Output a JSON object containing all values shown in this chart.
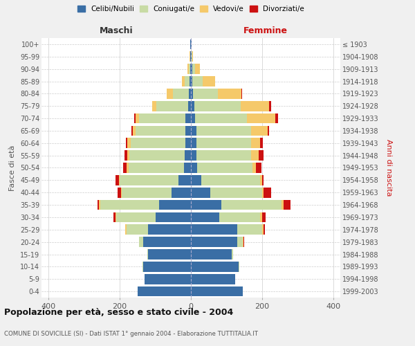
{
  "age_groups": [
    "0-4",
    "5-9",
    "10-14",
    "15-19",
    "20-24",
    "25-29",
    "30-34",
    "35-39",
    "40-44",
    "45-49",
    "50-54",
    "55-59",
    "60-64",
    "65-69",
    "70-74",
    "75-79",
    "80-84",
    "85-89",
    "90-94",
    "95-99",
    "100+"
  ],
  "birth_years": [
    "1999-2003",
    "1994-1998",
    "1989-1993",
    "1984-1988",
    "1979-1983",
    "1974-1978",
    "1969-1973",
    "1964-1968",
    "1959-1963",
    "1954-1958",
    "1949-1953",
    "1944-1948",
    "1939-1943",
    "1934-1938",
    "1929-1933",
    "1924-1928",
    "1919-1923",
    "1914-1918",
    "1909-1913",
    "1904-1908",
    "≤ 1903"
  ],
  "colors": {
    "celibi": "#3a6ea5",
    "coniugati": "#c8dba4",
    "vedovi": "#f5c96a",
    "divorziati": "#cc1111"
  },
  "males": {
    "celibi": [
      150,
      130,
      135,
      120,
      135,
      120,
      100,
      90,
      55,
      35,
      20,
      18,
      15,
      15,
      15,
      8,
      5,
      3,
      2,
      1,
      1
    ],
    "coniugati": [
      0,
      0,
      1,
      3,
      10,
      60,
      110,
      165,
      140,
      165,
      155,
      155,
      155,
      140,
      130,
      90,
      45,
      15,
      4,
      1,
      0
    ],
    "vedovi": [
      0,
      0,
      0,
      0,
      1,
      4,
      2,
      4,
      2,
      3,
      5,
      5,
      8,
      8,
      10,
      10,
      18,
      8,
      4,
      1,
      0
    ],
    "divorziati": [
      0,
      0,
      0,
      0,
      0,
      0,
      5,
      4,
      10,
      8,
      10,
      8,
      5,
      5,
      5,
      0,
      0,
      0,
      0,
      0,
      0
    ]
  },
  "females": {
    "celibi": [
      145,
      125,
      135,
      115,
      130,
      130,
      80,
      85,
      55,
      30,
      18,
      15,
      15,
      15,
      12,
      10,
      6,
      4,
      3,
      1,
      1
    ],
    "coniugati": [
      0,
      0,
      2,
      4,
      15,
      70,
      115,
      170,
      145,
      165,
      155,
      155,
      155,
      155,
      145,
      130,
      70,
      30,
      8,
      2,
      0
    ],
    "vedovi": [
      0,
      0,
      0,
      0,
      2,
      5,
      5,
      5,
      5,
      5,
      10,
      20,
      25,
      45,
      80,
      80,
      65,
      35,
      15,
      3,
      1
    ],
    "divorziati": [
      0,
      0,
      0,
      0,
      2,
      3,
      10,
      20,
      20,
      5,
      15,
      15,
      8,
      5,
      8,
      5,
      2,
      0,
      0,
      0,
      0
    ]
  },
  "title": "Popolazione per età, sesso e stato civile - 2004",
  "subtitle": "COMUNE DI SOVICILLE (SI) - Dati ISTAT 1° gennaio 2004 - Elaborazione TUTTITALIA.IT",
  "xlabel_left": "Maschi",
  "xlabel_right": "Femmine",
  "ylabel_left": "Fasce di età",
  "ylabel_right": "Anni di nascita",
  "xlim": 420,
  "legend_labels": [
    "Celibi/Nubili",
    "Coniugati/e",
    "Vedovi/e",
    "Divorziati/e"
  ],
  "bg_color": "#f0f0f0",
  "plot_bg": "#ffffff"
}
